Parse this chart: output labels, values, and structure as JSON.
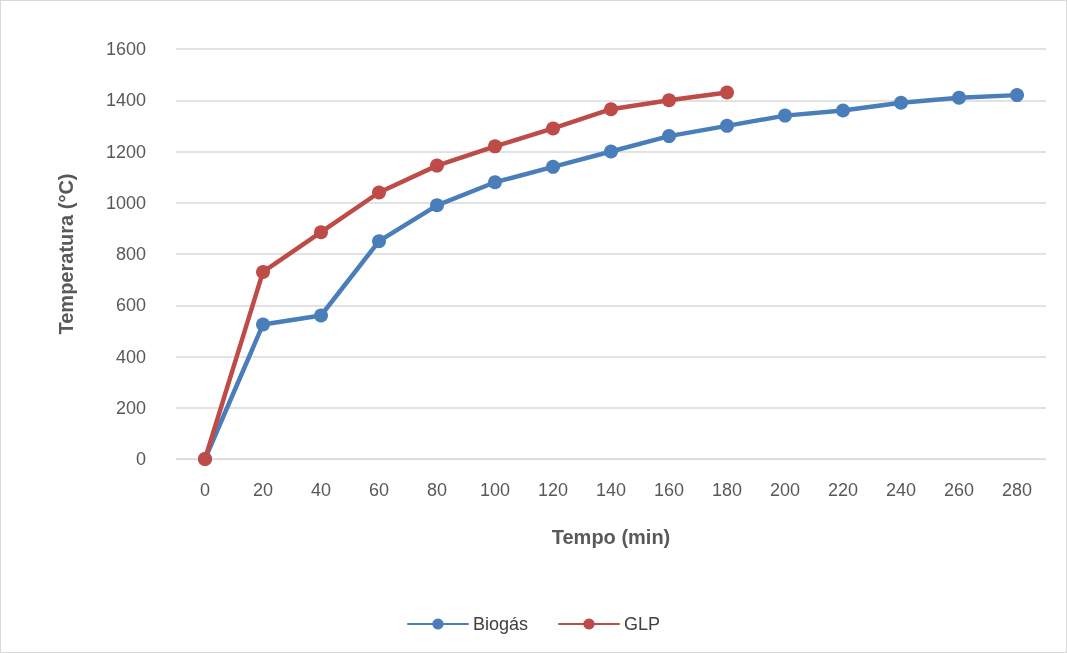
{
  "chart_data": {
    "type": "line",
    "xlabel": "Tempo (min)",
    "ylabel": "Temperatura (°C)",
    "categories": [
      "0",
      "20",
      "40",
      "60",
      "80",
      "100",
      "120",
      "140",
      "160",
      "180",
      "200",
      "220",
      "240",
      "260",
      "280"
    ],
    "series": [
      {
        "name": "Biogás",
        "color": "#4a7ebb",
        "values": [
          0,
          525,
          560,
          850,
          990,
          1080,
          1140,
          1200,
          1260,
          1300,
          1340,
          1360,
          1390,
          1410,
          1420
        ]
      },
      {
        "name": "GLP",
        "color": "#be4b48",
        "values": [
          0,
          730,
          885,
          1040,
          1145,
          1220,
          1290,
          1365,
          1400,
          1430,
          null,
          null,
          null,
          null,
          null
        ]
      }
    ],
    "ylim": [
      0,
      1600
    ],
    "yticks": [
      0,
      200,
      400,
      600,
      800,
      1000,
      1200,
      1400,
      1600
    ],
    "grid": "y",
    "legend": "bottom",
    "marker": "circle",
    "line_style": "solid"
  }
}
